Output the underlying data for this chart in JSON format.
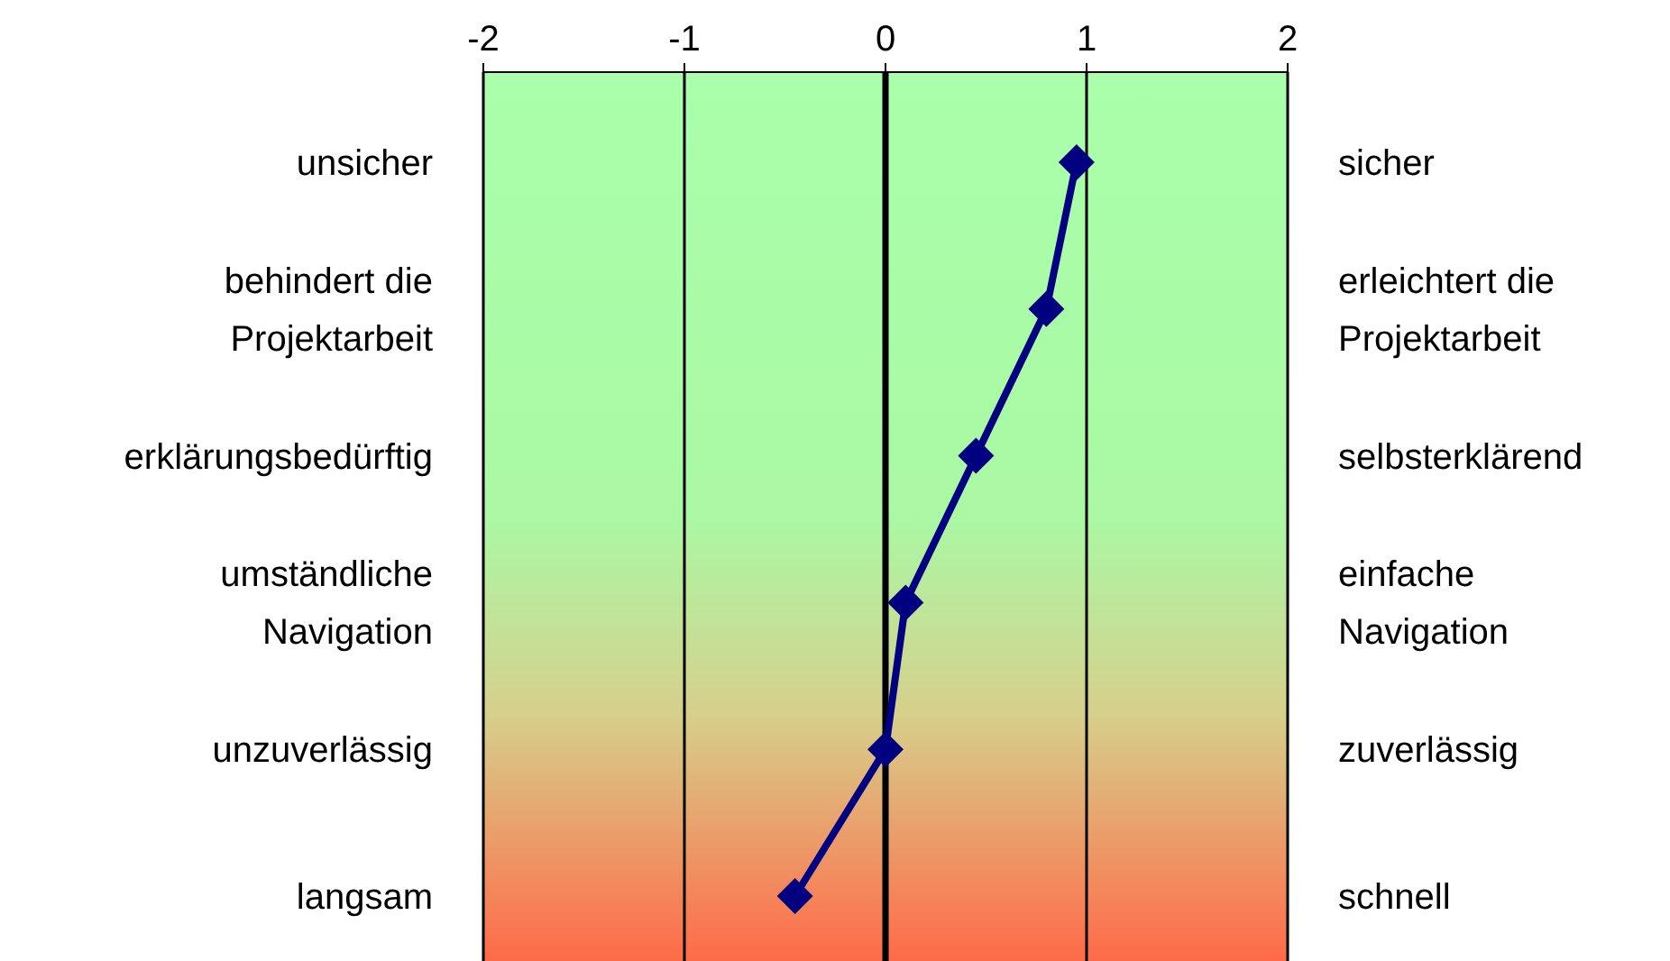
{
  "chart_data": {
    "type": "line",
    "orientation": "horizontal",
    "categories": [
      "unsicher",
      "behindert die Projektarbeit",
      "erklärungsbedürftig",
      "umständliche Navigation",
      "unzuverlässig",
      "langsam"
    ],
    "y2_categories": [
      "sicher",
      "erleichtert die Projektarbeit",
      "selbsterklärend",
      "einfache Navigation",
      "zuverlässig",
      "schnell"
    ],
    "series": [
      {
        "color": "#000080",
        "values": [
          0.95,
          0.8,
          0.45,
          0.1,
          0,
          -0.45
        ]
      }
    ],
    "xlim": [
      -2,
      2
    ],
    "xticks": [
      -2,
      -1,
      0,
      1,
      2
    ],
    "grid": "x",
    "marker": "diamond",
    "line_style": "solid",
    "ref_lines": [
      {
        "axis": "x",
        "value": 0
      }
    ]
  }
}
